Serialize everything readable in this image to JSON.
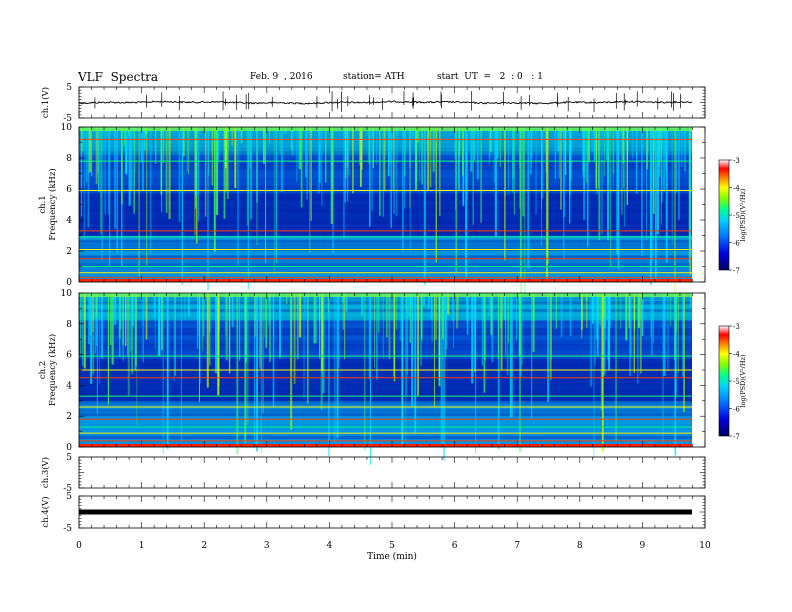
{
  "header": {
    "title": "VLF  Spectra",
    "date": "Feb. 9  , 2016",
    "station": "station= ATH",
    "start_ut": "start  UT  =   2  : 0   : 1"
  },
  "chart_data": {
    "type": "heatmap",
    "xlabel": "Time  (min)",
    "xlim": [
      0,
      10
    ],
    "x_ticks": [
      "0",
      "1",
      "2",
      "3",
      "4",
      "5",
      "6",
      "7",
      "8",
      "9",
      "10"
    ],
    "panels": [
      {
        "id": "ch1-waveform",
        "ylabel": "ch.1(V)",
        "ylim": [
          -5,
          5
        ],
        "y_ticks": [
          "5",
          "-5"
        ],
        "type": "line",
        "level": 0
      },
      {
        "id": "ch1-spectrogram",
        "ylabel": "ch.1\nFrequency  (kHz)",
        "ylim": [
          0,
          10
        ],
        "y_ticks": [
          "0",
          "2",
          "4",
          "6",
          "8",
          "10"
        ],
        "type": "heatmap",
        "colorbar": {
          "label": "log(PSD)(V²/Hz)",
          "ticks": [
            "-3",
            "-4",
            "-5",
            "-6",
            "-7"
          ],
          "range": [
            -7,
            -3
          ]
        },
        "horizontal_lines_khz": [
          0.3,
          0.6,
          1.0,
          1.5,
          2.1,
          2.9,
          3.3,
          5.9,
          7.8,
          9.2
        ]
      },
      {
        "id": "ch2-spectrogram",
        "ylabel": "ch.2\nFrequency  (kHz)",
        "ylim": [
          0,
          10
        ],
        "y_ticks": [
          "0",
          "2",
          "4",
          "6",
          "8",
          "10"
        ],
        "type": "heatmap",
        "colorbar": {
          "label": "log(PSD)(V²/Hz)",
          "ticks": [
            "-3",
            "-4",
            "-5",
            "-6",
            "-7"
          ],
          "range": [
            -7,
            -3
          ]
        },
        "horizontal_lines_khz": [
          0.4,
          0.9,
          1.3,
          1.8,
          2.6,
          3.3,
          4.5,
          5.0,
          5.9
        ]
      },
      {
        "id": "ch3-waveform",
        "ylabel": "ch.3(V)",
        "ylim": [
          -5,
          5
        ],
        "y_ticks": [
          "5",
          "-5"
        ],
        "type": "line",
        "level": 5
      },
      {
        "id": "ch4-waveform",
        "ylabel": "ch.4(V)",
        "ylim": [
          -5,
          5
        ],
        "y_ticks": [
          "5",
          "-5"
        ],
        "type": "line",
        "level": 0
      }
    ]
  }
}
